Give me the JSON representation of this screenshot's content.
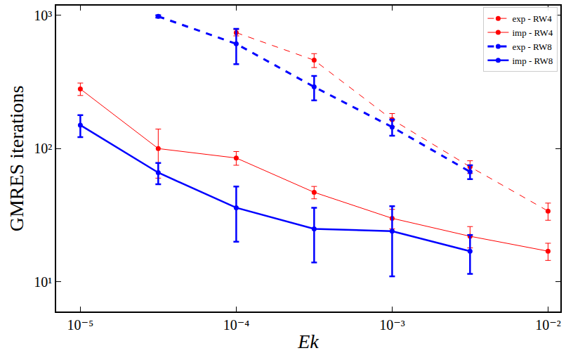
{
  "chart_data": {
    "type": "line",
    "x_label": "Ek",
    "y_label": "GMRES iterations",
    "log": true,
    "grid": false,
    "legend": "top-right",
    "xlim": [
      7e-06,
      0.012
    ],
    "ylim": [
      6.0,
      1180
    ],
    "xticks": [
      {
        "value": 1e-05,
        "label": "10⁻⁵"
      },
      {
        "value": 0.0001,
        "label": "10⁻⁴"
      },
      {
        "value": 0.001,
        "label": "10⁻³"
      },
      {
        "value": 0.01,
        "label": "10⁻²"
      }
    ],
    "yticks": [
      {
        "value": 10,
        "label": "10¹"
      },
      {
        "value": 100,
        "label": "10²"
      },
      {
        "value": 1000,
        "label": "10³"
      }
    ],
    "series": [
      {
        "name": "exp - RW4",
        "color": "#ff0000",
        "line_style": "dashed",
        "marker": "circle",
        "x": [
          0.0001,
          0.000316,
          0.001,
          0.00316,
          0.01
        ],
        "values": [
          740,
          460,
          165,
          73,
          34
        ],
        "errors": [
          40,
          55,
          18,
          8,
          5
        ]
      },
      {
        "name": "imp - RW4",
        "color": "#ff0000",
        "line_style": "solid",
        "marker": "circle",
        "x": [
          1e-05,
          3.16e-05,
          0.0001,
          0.000316,
          0.001,
          0.00316,
          0.01
        ],
        "values": [
          280,
          100,
          85,
          47,
          30,
          22,
          17
        ],
        "errors": [
          30,
          40,
          10,
          5,
          5,
          4,
          2.5
        ]
      },
      {
        "name": "exp - RW8",
        "color": "#0000ff",
        "line_style": "dashed",
        "marker": "circle",
        "x": [
          3.16e-05,
          0.0001,
          0.000316,
          0.001,
          0.00316
        ],
        "values": [
          980,
          610,
          290,
          145,
          67
        ],
        "errors": [
          20,
          180,
          60,
          20,
          8
        ]
      },
      {
        "name": "imp - RW8",
        "color": "#0000ff",
        "line_style": "solid",
        "marker": "circle",
        "x": [
          1e-05,
          3.16e-05,
          0.0001,
          0.000316,
          0.001,
          0.00316
        ],
        "values": [
          150,
          66,
          36,
          25,
          24,
          17
        ],
        "errors": [
          28,
          12,
          16,
          11,
          13,
          5.5
        ]
      }
    ]
  }
}
